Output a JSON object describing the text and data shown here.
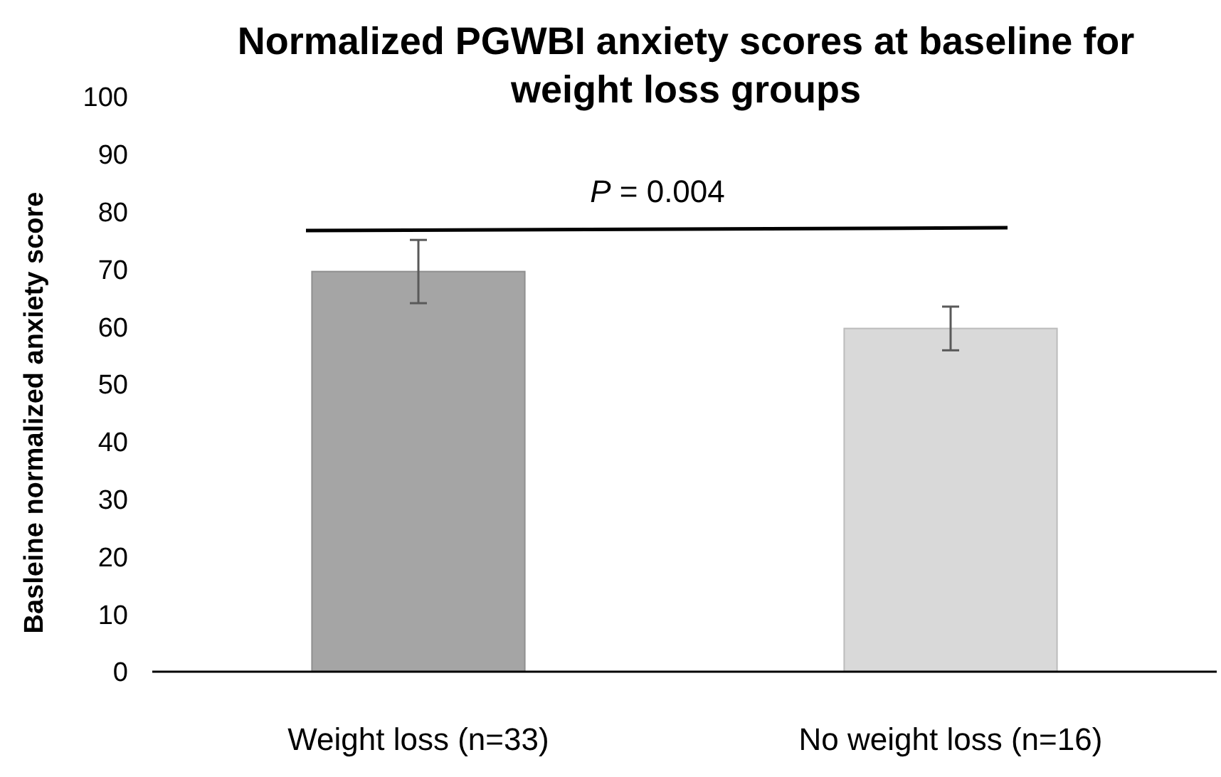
{
  "chart_data": {
    "type": "bar",
    "title": "Normalized PGWBI anxiety scores at baseline for weight loss groups",
    "ylabel": "Basleine normalized anxiety score",
    "categories": [
      "Weight loss (n=33)",
      "No weight loss (n=16)"
    ],
    "values": [
      69.6,
      59.7
    ],
    "errors": [
      5.5,
      3.8
    ],
    "colors": [
      "#a5a5a5",
      "#d9d9d9"
    ],
    "ylim": [
      0,
      100
    ],
    "yticks": [
      0,
      10,
      20,
      30,
      40,
      50,
      60,
      70,
      80,
      90,
      100
    ],
    "grid": false,
    "annotations": [
      "P = 0.004"
    ]
  }
}
